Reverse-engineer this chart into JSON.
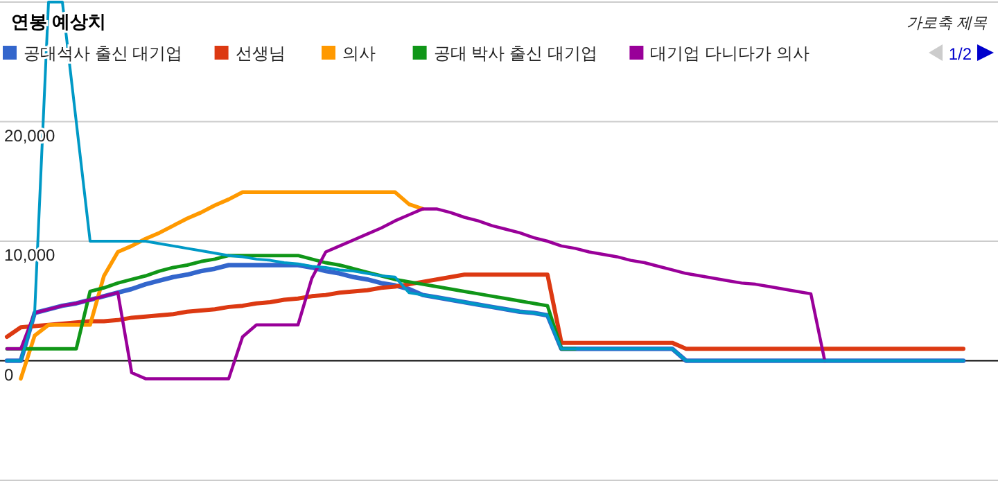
{
  "chart_data": {
    "type": "line",
    "title": "연봉 예상치",
    "xlabel": "가로축 제목",
    "annotations": [
      "1/2"
    ],
    "legend": "top",
    "grid": "y",
    "categories": [
      null,
      null,
      null,
      null,
      null,
      null,
      null,
      null,
      null,
      null,
      null,
      null,
      null,
      null,
      null,
      null,
      null,
      null,
      null,
      null,
      null,
      null,
      null,
      null,
      null,
      null,
      null,
      null,
      null,
      null,
      null,
      null,
      null,
      null,
      null,
      null,
      null,
      null,
      null,
      null,
      null,
      null,
      null,
      null,
      null,
      null,
      null,
      null,
      null,
      null,
      null,
      null,
      null,
      null,
      null,
      null,
      null,
      null,
      null,
      null,
      null,
      null,
      null,
      null,
      null,
      null,
      null,
      null,
      null,
      null
    ],
    "ylim": [
      -10000,
      30000
    ],
    "yticks": [
      {
        "value": -10000,
        "label": null
      },
      0,
      {
        "value": 10000,
        "label": "10,000"
      },
      {
        "value": 20000,
        "label": "20,000"
      },
      {
        "value": 30000,
        "label": null
      }
    ],
    "series": [
      {
        "name": "공대석사 출신 대기업",
        "color": "#3366cc",
        "values": [
          0,
          0,
          4000,
          4300,
          4600,
          4800,
          5100,
          5400,
          5700,
          6000,
          6400,
          6700,
          7000,
          7200,
          7500,
          7700,
          8000,
          8000,
          8000,
          8000,
          8000,
          8000,
          7800,
          7500,
          7300,
          7000,
          6800,
          6500,
          6300,
          6000,
          5500,
          5300,
          5100,
          4900,
          4700,
          4500,
          4300,
          4100,
          4000,
          3800,
          1000,
          1000,
          1000,
          1000,
          1000,
          1000,
          1000,
          1000,
          1000,
          0,
          0,
          0,
          0,
          0,
          0,
          0,
          0,
          0,
          0,
          0,
          0,
          0,
          0,
          0,
          0,
          0,
          0,
          0,
          0,
          0
        ]
      },
      {
        "name": "선생님",
        "color": "#dc3912",
        "values": [
          2000,
          2800,
          2900,
          3000,
          3100,
          3200,
          3300,
          3300,
          3400,
          3600,
          3700,
          3800,
          3900,
          4100,
          4200,
          4300,
          4500,
          4600,
          4800,
          4900,
          5100,
          5200,
          5400,
          5500,
          5700,
          5800,
          5900,
          6100,
          6200,
          6400,
          6600,
          6800,
          7000,
          7200,
          7200,
          7200,
          7200,
          7200,
          7200,
          7200,
          1500,
          1500,
          1500,
          1500,
          1500,
          1500,
          1500,
          1500,
          1500,
          1000,
          1000,
          1000,
          1000,
          1000,
          1000,
          1000,
          1000,
          1000,
          1000,
          1000,
          1000,
          1000,
          1000,
          1000,
          1000,
          1000,
          1000,
          1000,
          1000,
          1000
        ]
      },
      {
        "name": "의사",
        "color": "#ff9900",
        "values": [
          null,
          -1500,
          2100,
          3000,
          3000,
          3000,
          3000,
          7100,
          9100,
          9600,
          10200,
          10700,
          11300,
          11900,
          12400,
          13000,
          13500,
          14100,
          14100,
          14100,
          14100,
          14100,
          14100,
          14100,
          14100,
          14100,
          14100,
          14100,
          14100,
          13100,
          12700,
          null,
          null,
          null,
          null,
          null,
          null,
          null,
          null,
          null,
          null,
          null,
          null,
          null,
          null,
          null,
          null,
          null,
          null,
          null,
          null,
          null,
          null,
          null,
          null,
          null,
          null,
          null,
          null,
          null,
          null,
          null,
          null,
          null,
          null,
          null,
          null,
          null,
          null,
          null
        ]
      },
      {
        "name": "공대 박사 출신 대기업",
        "color": "#109618",
        "values": [
          1000,
          1000,
          1000,
          1000,
          1000,
          1000,
          5800,
          6100,
          6500,
          6800,
          7100,
          7500,
          7800,
          8000,
          8300,
          8500,
          8800,
          8800,
          8800,
          8800,
          8800,
          8800,
          8500,
          8200,
          8000,
          7700,
          7400,
          7100,
          6800,
          6600,
          6400,
          6200,
          6000,
          5800,
          5600,
          5400,
          5200,
          5000,
          4800,
          4600,
          1000,
          1000,
          null,
          null,
          null,
          null,
          null,
          null,
          null,
          null,
          null,
          null,
          null,
          null,
          null,
          null,
          null,
          null,
          null,
          null,
          null,
          null,
          null,
          null,
          null,
          null,
          null,
          null,
          null,
          null
        ]
      },
      {
        "name": "대기업 다니다가 의사",
        "color": "#990099",
        "values": [
          1000,
          1000,
          4000,
          4300,
          4600,
          4800,
          5100,
          5400,
          5700,
          -1000,
          -1500,
          -1500,
          -1500,
          -1500,
          -1500,
          -1500,
          -1500,
          2000,
          3000,
          3000,
          3000,
          3000,
          6900,
          9100,
          9600,
          10100,
          10600,
          11100,
          11700,
          12200,
          12700,
          12700,
          12400,
          12000,
          11700,
          11300,
          11000,
          10700,
          10300,
          10000,
          9600,
          9400,
          9100,
          8900,
          8700,
          8400,
          8200,
          7900,
          7600,
          7300,
          7100,
          6900,
          6700,
          6500,
          6400,
          6200,
          6000,
          5800,
          5600,
          0,
          null,
          null,
          null,
          null,
          null,
          null,
          null,
          null,
          null,
          null
        ]
      },
      {
        "color": "#0099c6",
        "values": [
          0,
          0,
          4000,
          30000,
          30000,
          20000,
          10000,
          10000,
          10000,
          10000,
          10000,
          9800,
          9600,
          9400,
          9200,
          9000,
          8800,
          8700,
          8500,
          8400,
          8200,
          8100,
          7900,
          7800,
          7600,
          7500,
          7300,
          7100,
          7000,
          5700,
          5500,
          5300,
          5100,
          4900,
          4700,
          4500,
          4300,
          4100,
          4000,
          3800,
          1000,
          1000,
          1000,
          1000,
          1000,
          1000,
          1000,
          1000,
          1000,
          0,
          0,
          0,
          0,
          0,
          0,
          0,
          0,
          0,
          0,
          0,
          0,
          0,
          0,
          0,
          0,
          0,
          0,
          0,
          0,
          0
        ]
      }
    ]
  }
}
